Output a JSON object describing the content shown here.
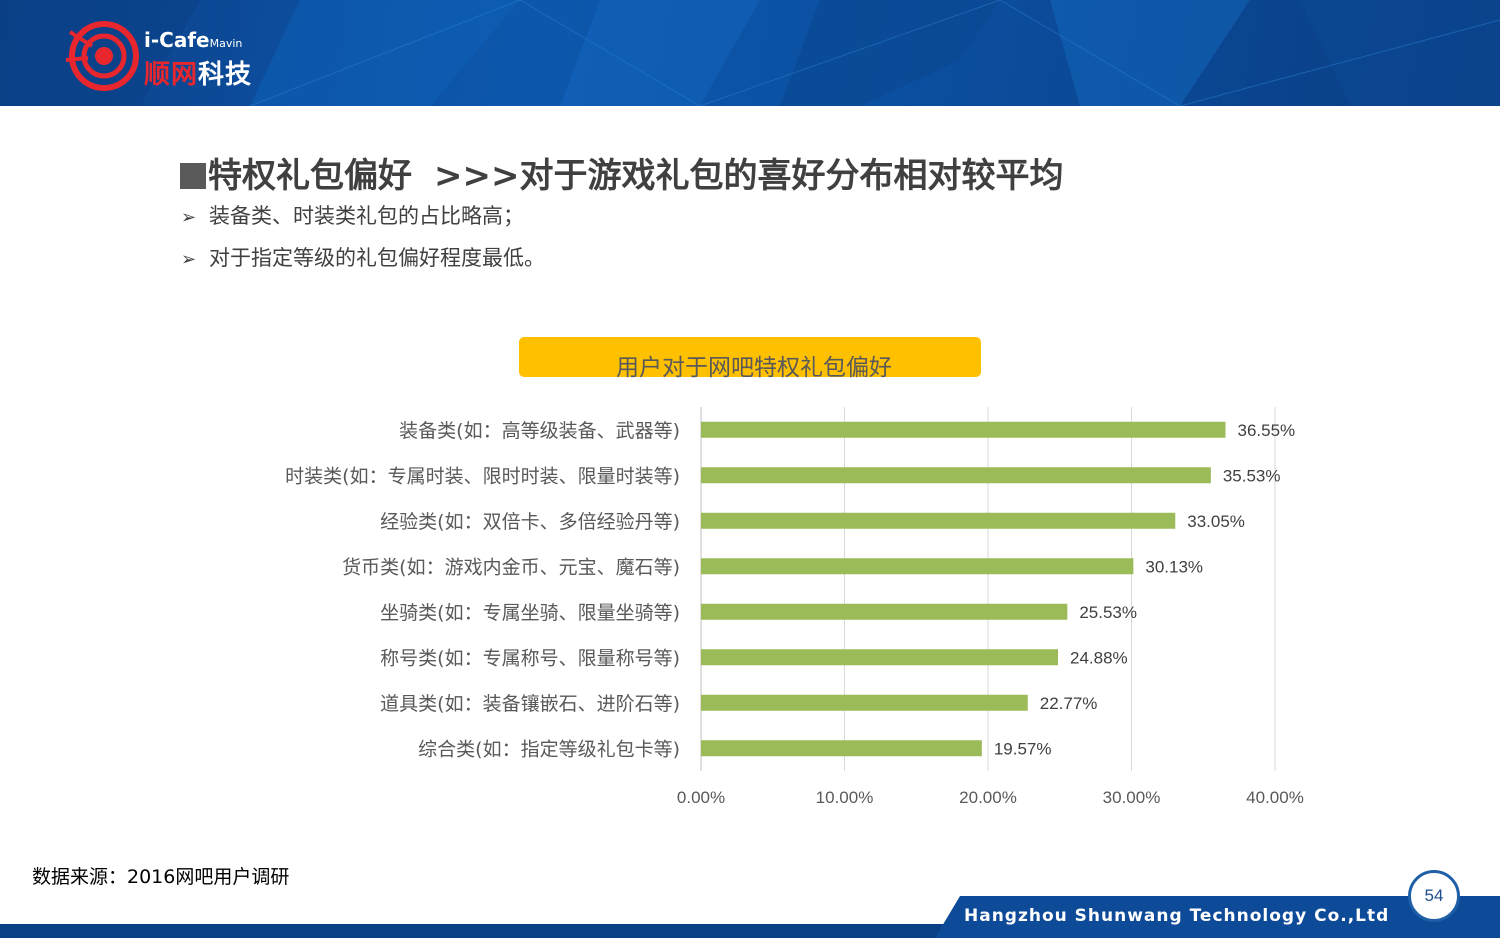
{
  "header": {
    "logo_en": "i-Cafe",
    "logo_en_small": "Mavin",
    "logo_cn_red": "顺网",
    "logo_cn_white": "科技"
  },
  "title": {
    "main": "特权礼包偏好",
    "sub": ">>>对于游戏礼包的喜好分布相对较平均"
  },
  "bullets": [
    "装备类、时装类礼包的占比略高；",
    "对于指定等级的礼包偏好程度最低。"
  ],
  "bullet_icon": "arrow-bullet-icon",
  "chart_data": {
    "type": "bar",
    "orientation": "horizontal",
    "title": "用户对于网吧特权礼包偏好",
    "categories": [
      "装备类(如：高等级装备、武器等)",
      "时装类(如：专属时装、限时时装、限量时装等)",
      "经验类(如：双倍卡、多倍经验丹等)",
      "货币类(如：游戏内金币、元宝、魔石等)",
      "坐骑类(如：专属坐骑、限量坐骑等)",
      "称号类(如：专属称号、限量称号等)",
      "道具类(如：装备镶嵌石、进阶石等)",
      "综合类(如：指定等级礼包卡等)"
    ],
    "values": [
      36.55,
      35.53,
      33.05,
      30.13,
      25.53,
      24.88,
      22.77,
      19.57
    ],
    "value_labels": [
      "36.55%",
      "35.53%",
      "33.05%",
      "30.13%",
      "25.53%",
      "24.88%",
      "22.77%",
      "19.57%"
    ],
    "xlim": [
      0,
      40
    ],
    "xticks": [
      0,
      10,
      20,
      30,
      40
    ],
    "xtick_labels": [
      "0.00%",
      "10.00%",
      "20.00%",
      "30.00%",
      "40.00%"
    ],
    "grid": "vertical",
    "legend": "none",
    "colors": {
      "bar": "#9bbb59",
      "title_box": "#ffc000"
    }
  },
  "source": "数据来源：2016网吧用户调研",
  "footer": {
    "company": "Hangzhou Shunwang Technology Co.,Ltd",
    "page": "54"
  }
}
